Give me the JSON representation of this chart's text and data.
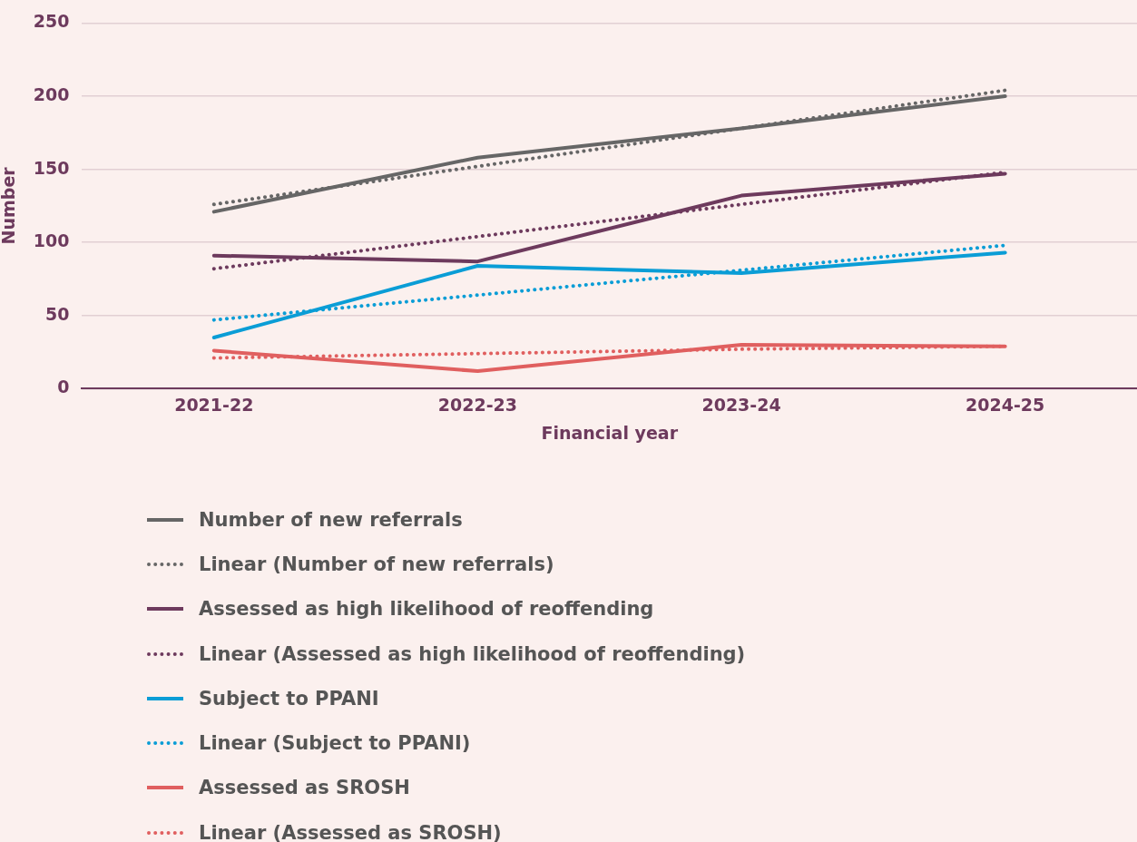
{
  "chart_data": {
    "type": "line",
    "xlabel": "Financial year",
    "ylabel": "Number",
    "categories": [
      "2021-22",
      "2022-23",
      "2023-24",
      "2024-25"
    ],
    "ylim": [
      0,
      250
    ],
    "yticks": [
      0,
      50,
      100,
      150,
      200,
      250
    ],
    "grid": "y",
    "legend": "bottom",
    "marker": "none",
    "series": [
      {
        "name": "Number of new referrals",
        "color": "#666666",
        "values": [
          121,
          158,
          178,
          200
        ],
        "line_style": "solid"
      },
      {
        "name": "Linear (Number of new referrals)",
        "color": "#666666",
        "values": [
          126,
          152,
          178,
          204
        ],
        "line_style": "dotted"
      },
      {
        "name": "Assessed as high likelihood of reoffending",
        "color": "#6d3a5d",
        "values": [
          91,
          87,
          132,
          147
        ],
        "line_style": "solid"
      },
      {
        "name": "Linear (Assessed as high likelihood of reoffending)",
        "color": "#6d3a5d",
        "values": [
          82,
          104,
          126,
          148
        ],
        "line_style": "dotted"
      },
      {
        "name": "Subject to PPANI",
        "color": "#0a9dd6",
        "values": [
          35,
          84,
          79,
          93
        ],
        "line_style": "solid"
      },
      {
        "name": "Linear (Subject to PPANI)",
        "color": "#0a9dd6",
        "values": [
          47,
          64,
          81,
          98
        ],
        "line_style": "dotted"
      },
      {
        "name": "Assessed as SROSH",
        "color": "#e05f5f",
        "values": [
          26,
          12,
          30,
          29
        ],
        "line_style": "solid"
      },
      {
        "name": "Linear (Assessed as SROSH)",
        "color": "#e05f5f",
        "values": [
          21,
          24,
          27,
          29
        ],
        "line_style": "dotted"
      }
    ]
  }
}
